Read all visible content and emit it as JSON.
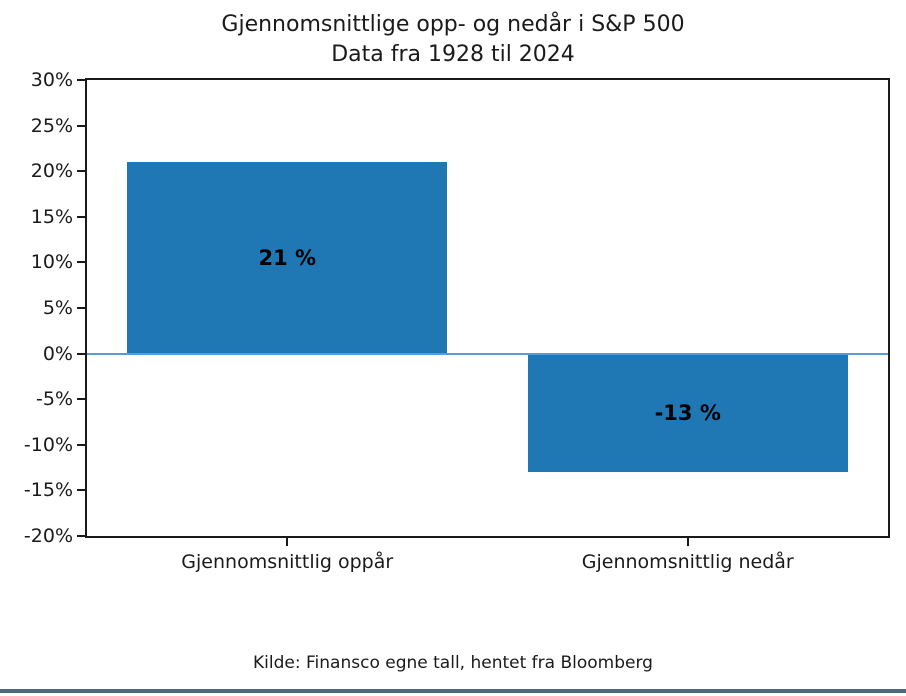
{
  "title": {
    "line1": "Gjennomsnittlige opp- og nedår i S&P 500",
    "line2": "Data fra 1928 til 2024"
  },
  "footer": {
    "source": "Kilde: Finansco egne tall, hentet fra Bloomberg"
  },
  "colors": {
    "bar": "#1f77b4",
    "zero_line": "#5b9bd5",
    "axis": "#1a1a1a",
    "bottom_bar": "#4d6b78",
    "background": "#ffffff"
  },
  "chart_data": {
    "type": "bar",
    "title": "Gjennomsnittlige opp- og nedår i S&P 500",
    "subtitle": "Data fra 1928 til 2024",
    "categories": [
      "Gjennomsnittlig oppår",
      "Gjennomsnittlig nedår"
    ],
    "values": [
      21,
      -13
    ],
    "bar_labels": [
      "21 %",
      "-13 %"
    ],
    "bar_color": "#1f77b4",
    "xlabel": "",
    "ylabel": "",
    "ylim": [
      -20,
      30
    ],
    "ytick_step": 5,
    "ytick_labels": [
      "30%",
      "25%",
      "20%",
      "15%",
      "10%",
      "5%",
      "0%",
      "-5%",
      "-10%",
      "-15%",
      "-20%"
    ],
    "grid": false,
    "legend": false,
    "zero_line": true,
    "bar_width_fraction": 0.8,
    "source_note": "Kilde: Finansco egne tall, hentet fra Bloomberg"
  }
}
